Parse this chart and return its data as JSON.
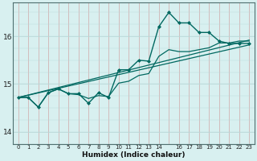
{
  "xlabel": "Humidex (Indice chaleur)",
  "bg_color": "#d8f0f0",
  "grid_color_v": "#d0a8a8",
  "grid_color_h": "#b8d8d8",
  "line_color": "#006860",
  "xlim": [
    -0.5,
    23.5
  ],
  "ylim": [
    13.75,
    16.7
  ],
  "yticks": [
    14,
    15,
    16
  ],
  "xtick_labels": [
    "0",
    "1",
    "2",
    "3",
    "4",
    "5",
    "6",
    "7",
    "8",
    "9",
    "10",
    "11",
    "12",
    "13",
    "14",
    "",
    "16",
    "17",
    "18",
    "19",
    "20",
    "21",
    "22",
    "23"
  ],
  "xtick_positions": [
    0,
    1,
    2,
    3,
    4,
    5,
    6,
    7,
    8,
    9,
    10,
    11,
    12,
    13,
    14,
    15,
    16,
    17,
    18,
    19,
    20,
    21,
    22,
    23
  ],
  "series": [
    {
      "x": [
        0,
        1,
        2,
        3,
        4,
        5,
        6,
        7,
        8,
        9,
        10,
        11,
        12,
        13,
        14,
        15,
        16,
        17,
        18,
        19,
        20,
        21,
        22,
        23
      ],
      "y": [
        14.72,
        14.72,
        14.52,
        14.82,
        14.9,
        14.8,
        14.8,
        14.6,
        14.82,
        14.72,
        15.3,
        15.3,
        15.5,
        15.48,
        16.2,
        16.5,
        16.28,
        16.28,
        16.08,
        16.08,
        15.9,
        15.85,
        15.85,
        15.85
      ],
      "marker": "D",
      "markersize": 2.0,
      "linewidth": 1.0
    },
    {
      "x": [
        0,
        1,
        2,
        3,
        4,
        5,
        6,
        7,
        8,
        9,
        10,
        11,
        12,
        13,
        14,
        15,
        16,
        17,
        18,
        19,
        20,
        21,
        22,
        23
      ],
      "y": [
        14.72,
        14.72,
        14.52,
        14.82,
        14.9,
        14.8,
        14.78,
        14.7,
        14.76,
        14.74,
        15.02,
        15.06,
        15.18,
        15.22,
        15.58,
        15.72,
        15.68,
        15.68,
        15.72,
        15.76,
        15.86,
        15.86,
        15.9,
        15.9
      ],
      "marker": null,
      "markersize": 0,
      "linewidth": 0.9
    },
    {
      "x": [
        0,
        23
      ],
      "y": [
        14.72,
        15.92
      ],
      "marker": null,
      "markersize": 0,
      "linewidth": 0.9
    },
    {
      "x": [
        0,
        23
      ],
      "y": [
        14.72,
        15.82
      ],
      "marker": null,
      "markersize": 0,
      "linewidth": 0.9
    }
  ]
}
